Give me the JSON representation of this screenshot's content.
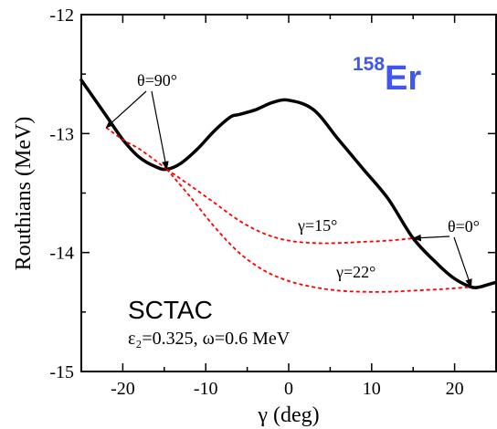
{
  "chart_data": {
    "type": "line",
    "title": "",
    "xlabel": "γ (deg)",
    "ylabel": "Routhians (MeV)",
    "xlim": [
      -25,
      25
    ],
    "ylim": [
      -15,
      -12
    ],
    "xticks": [
      -20,
      -10,
      0,
      10,
      20
    ],
    "xtick_labels": [
      "-20",
      "-10",
      "0",
      "10",
      "20"
    ],
    "yticks": [
      -15,
      -14,
      -13,
      -12
    ],
    "ytick_labels": [
      "-15",
      "-14",
      "-13",
      "-12"
    ],
    "grid": false,
    "legend": "none",
    "series": [
      {
        "style": "solid",
        "color": "#000000",
        "x": [
          -25,
          -22,
          -20,
          -18,
          -16,
          -14.7,
          -13,
          -11,
          -9,
          -7,
          -6,
          -4,
          -2,
          0,
          3,
          6,
          9,
          12,
          15,
          18,
          20,
          22,
          23,
          24,
          25
        ],
        "y": [
          -12.55,
          -12.85,
          -13.05,
          -13.2,
          -13.28,
          -13.3,
          -13.25,
          -13.13,
          -12.98,
          -12.86,
          -12.84,
          -12.8,
          -12.74,
          -12.72,
          -12.8,
          -13.05,
          -13.3,
          -13.55,
          -13.88,
          -14.1,
          -14.22,
          -14.29,
          -14.29,
          -14.27,
          -14.25
        ]
      },
      {
        "style": "dashed",
        "color": "#ff0000",
        "x": [
          -22,
          -20,
          -18,
          -16,
          -14.7
        ],
        "y": [
          -12.95,
          -13.05,
          -13.13,
          -13.23,
          -13.3
        ]
      },
      {
        "style": "dashed",
        "color": "#ff0000",
        "x": [
          -14.7,
          -12,
          -9,
          -6,
          -3,
          0,
          3,
          6,
          9,
          12,
          15
        ],
        "y": [
          -13.3,
          -13.43,
          -13.58,
          -13.73,
          -13.84,
          -13.9,
          -13.92,
          -13.92,
          -13.91,
          -13.9,
          -13.88
        ]
      },
      {
        "style": "dashed",
        "color": "#ff0000",
        "x": [
          -14.7,
          -12,
          -9,
          -6,
          -3,
          0,
          3,
          6,
          9,
          12,
          15,
          18,
          20,
          22
        ],
        "y": [
          -13.3,
          -13.52,
          -13.78,
          -14.0,
          -14.15,
          -14.24,
          -14.29,
          -14.32,
          -14.33,
          -14.33,
          -14.32,
          -14.31,
          -14.3,
          -14.29
        ]
      }
    ],
    "annotations": {
      "theta90": "θ=90°",
      "theta0": "θ=0°",
      "gamma15": "γ=15°",
      "gamma22": "γ=22°"
    },
    "label_main": "SCTAC",
    "label_params": "ε₂=0.325, ω=0.6 MeV",
    "nucleus": {
      "mass": "158",
      "symbol": "Er"
    },
    "colors": {
      "axis": "#000000",
      "solid": "#000000",
      "dashed": "#ff0000",
      "nucleus": "#3f57f0"
    }
  }
}
